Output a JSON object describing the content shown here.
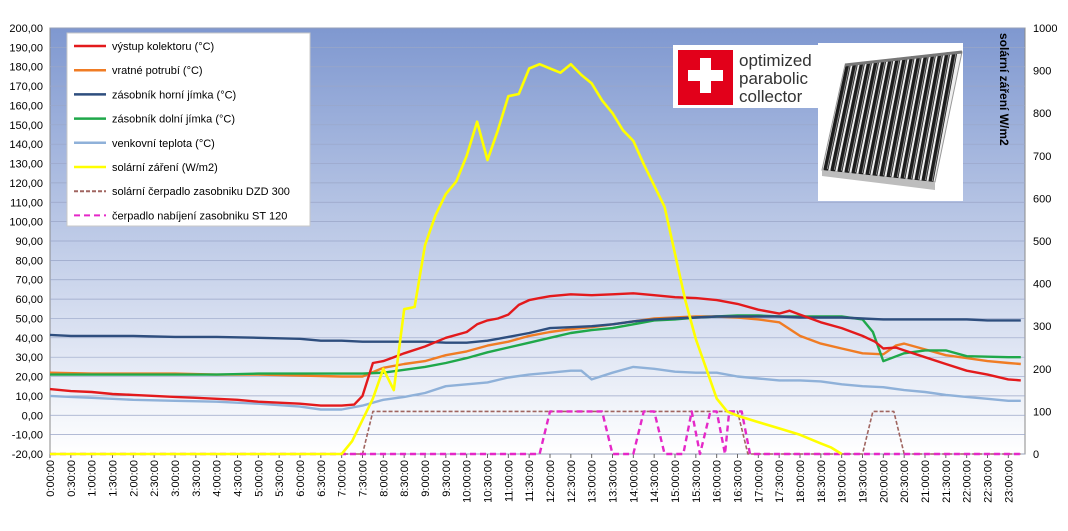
{
  "chart_data": {
    "type": "line",
    "y_left": {
      "min": -20,
      "max": 200,
      "step": 10
    },
    "y_right": {
      "min": 0,
      "max": 1000,
      "step": 100,
      "label": "solární záření W/m2"
    },
    "x_tick_labels": [
      "0:00:00",
      "0:30:00",
      "1:00:00",
      "1:30:00",
      "2:00:00",
      "2:30:00",
      "3:00:00",
      "3:30:00",
      "4:00:00",
      "4:30:00",
      "5:00:00",
      "5:30:00",
      "6:00:00",
      "6:30:00",
      "7:00:00",
      "7:30:00",
      "8:00:00",
      "8:30:00",
      "9:00:00",
      "9:30:00",
      "10:00:00",
      "10:30:00",
      "11:00:00",
      "11:30:00",
      "12:00:00",
      "12:30:00",
      "13:00:00",
      "13:30:00",
      "14:00:00",
      "14:30:00",
      "15:00:00",
      "15:30:00",
      "16:00:00",
      "16:30:00",
      "17:00:00",
      "17:30:00",
      "18:00:00",
      "18:30:00",
      "19:00:00",
      "19:30:00",
      "20:00:00",
      "20:30:00",
      "21:00:00",
      "21:30:00",
      "22:00:00",
      "22:30:00",
      "23:00:00"
    ],
    "x_range_hours": [
      0,
      23.4
    ],
    "grid": true,
    "legend_position": "top-left",
    "series": [
      {
        "name": "výstup kolektoru (°C)",
        "color": "#e31a1c",
        "axis": "left",
        "style": "solid",
        "points": [
          [
            0,
            13.5
          ],
          [
            0.5,
            12.5
          ],
          [
            1,
            12
          ],
          [
            1.5,
            11
          ],
          [
            2,
            10.5
          ],
          [
            2.5,
            10
          ],
          [
            3,
            9.5
          ],
          [
            3.5,
            9
          ],
          [
            4,
            8.5
          ],
          [
            4.5,
            8
          ],
          [
            5,
            7
          ],
          [
            5.5,
            6.5
          ],
          [
            6,
            6
          ],
          [
            6.5,
            5
          ],
          [
            7,
            5
          ],
          [
            7.3,
            5.5
          ],
          [
            7.5,
            10
          ],
          [
            7.75,
            27
          ],
          [
            8,
            28
          ],
          [
            8.25,
            30
          ],
          [
            8.5,
            32
          ],
          [
            9,
            35.5
          ],
          [
            9.5,
            40
          ],
          [
            10,
            43
          ],
          [
            10.25,
            47
          ],
          [
            10.5,
            49
          ],
          [
            10.75,
            50
          ],
          [
            11,
            52
          ],
          [
            11.25,
            57
          ],
          [
            11.5,
            59.5
          ],
          [
            11.75,
            60.5
          ],
          [
            12,
            61.5
          ],
          [
            12.5,
            62.5
          ],
          [
            13,
            62
          ],
          [
            13.5,
            62.5
          ],
          [
            14,
            63
          ],
          [
            14.5,
            62
          ],
          [
            15,
            61
          ],
          [
            15.5,
            60.5
          ],
          [
            16,
            59.5
          ],
          [
            16.5,
            57.5
          ],
          [
            17,
            54.5
          ],
          [
            17.5,
            52.5
          ],
          [
            17.75,
            54
          ],
          [
            18,
            52
          ],
          [
            18.5,
            48
          ],
          [
            19,
            45
          ],
          [
            19.5,
            41
          ],
          [
            19.8,
            38
          ],
          [
            20,
            34.5
          ],
          [
            20.3,
            35
          ],
          [
            20.5,
            33.5
          ],
          [
            21,
            30
          ],
          [
            21.5,
            26.5
          ],
          [
            22,
            23
          ],
          [
            22.5,
            21
          ],
          [
            23,
            18.5
          ],
          [
            23.3,
            18
          ]
        ]
      },
      {
        "name": "vratné potrubí (°C)",
        "color": "#f07c24",
        "axis": "left",
        "style": "solid",
        "points": [
          [
            0,
            22
          ],
          [
            1,
            21.5
          ],
          [
            2,
            21.5
          ],
          [
            3,
            21.5
          ],
          [
            4,
            21
          ],
          [
            5,
            21
          ],
          [
            6,
            20.5
          ],
          [
            7,
            20
          ],
          [
            7.5,
            20
          ],
          [
            8,
            24.5
          ],
          [
            8.5,
            26.5
          ],
          [
            9,
            28
          ],
          [
            9.5,
            31
          ],
          [
            10,
            33
          ],
          [
            10.5,
            36
          ],
          [
            11,
            38
          ],
          [
            11.5,
            41
          ],
          [
            12,
            43
          ],
          [
            12.5,
            44.5
          ],
          [
            13,
            45.5
          ],
          [
            13.5,
            47
          ],
          [
            14,
            48.5
          ],
          [
            14.5,
            50
          ],
          [
            15,
            50.5
          ],
          [
            15.5,
            51
          ],
          [
            16,
            51
          ],
          [
            16.5,
            50.5
          ],
          [
            17,
            49.5
          ],
          [
            17.5,
            48
          ],
          [
            18,
            41
          ],
          [
            18.5,
            37
          ],
          [
            19,
            34.5
          ],
          [
            19.5,
            32
          ],
          [
            20,
            31.5
          ],
          [
            20.3,
            36
          ],
          [
            20.5,
            37
          ],
          [
            21,
            34
          ],
          [
            21.5,
            31
          ],
          [
            22,
            29.5
          ],
          [
            22.5,
            28
          ],
          [
            23,
            27
          ],
          [
            23.3,
            26.5
          ]
        ]
      },
      {
        "name": "zásobník horní jímka (°C)",
        "color": "#2e4e7e",
        "axis": "left",
        "style": "solid",
        "points": [
          [
            0,
            41.5
          ],
          [
            0.5,
            41
          ],
          [
            1,
            41
          ],
          [
            2,
            41
          ],
          [
            3,
            40.5
          ],
          [
            4,
            40.5
          ],
          [
            5,
            40
          ],
          [
            6,
            39.5
          ],
          [
            6.5,
            38.5
          ],
          [
            7,
            38.5
          ],
          [
            7.5,
            38
          ],
          [
            8,
            38
          ],
          [
            9,
            38
          ],
          [
            9.5,
            37.5
          ],
          [
            10,
            37.5
          ],
          [
            10.5,
            38.5
          ],
          [
            11,
            40.5
          ],
          [
            11.5,
            42.5
          ],
          [
            12,
            45
          ],
          [
            12.5,
            45.5
          ],
          [
            13,
            46
          ],
          [
            13.5,
            47
          ],
          [
            14,
            48.5
          ],
          [
            14.5,
            49.5
          ],
          [
            15,
            50
          ],
          [
            15.5,
            50.5
          ],
          [
            16,
            51
          ],
          [
            17,
            51
          ],
          [
            17.5,
            51
          ],
          [
            18,
            50.5
          ],
          [
            19,
            50.5
          ],
          [
            19.5,
            50
          ],
          [
            20,
            49.5
          ],
          [
            21,
            49.5
          ],
          [
            22,
            49.5
          ],
          [
            22.5,
            49
          ],
          [
            23.3,
            49
          ]
        ]
      },
      {
        "name": "zásobník dolní jímka  (°C)",
        "color": "#1fa84a",
        "axis": "left",
        "style": "solid",
        "points": [
          [
            0,
            21
          ],
          [
            1,
            21
          ],
          [
            2,
            21
          ],
          [
            3,
            21
          ],
          [
            4,
            21
          ],
          [
            5,
            21.5
          ],
          [
            6,
            21.5
          ],
          [
            7,
            21.5
          ],
          [
            7.5,
            21.5
          ],
          [
            8,
            22
          ],
          [
            8.5,
            23.5
          ],
          [
            9,
            25
          ],
          [
            9.5,
            27
          ],
          [
            10,
            29.5
          ],
          [
            10.5,
            32.5
          ],
          [
            11,
            35
          ],
          [
            11.5,
            37.5
          ],
          [
            12,
            40
          ],
          [
            12.5,
            42.5
          ],
          [
            13,
            44
          ],
          [
            13.5,
            45
          ],
          [
            14,
            47
          ],
          [
            14.5,
            49
          ],
          [
            15,
            49.5
          ],
          [
            15.5,
            50.5
          ],
          [
            16,
            51
          ],
          [
            16.5,
            51.5
          ],
          [
            17,
            51.5
          ],
          [
            17.5,
            51
          ],
          [
            18,
            51
          ],
          [
            19,
            51
          ],
          [
            19.5,
            49.5
          ],
          [
            19.75,
            43
          ],
          [
            20,
            28
          ],
          [
            20.5,
            32
          ],
          [
            21,
            33.5
          ],
          [
            21.5,
            33.5
          ],
          [
            22,
            30.5
          ],
          [
            23,
            30
          ],
          [
            23.3,
            30
          ]
        ]
      },
      {
        "name": "venkovní teplota (°C)",
        "color": "#8fb1d9",
        "axis": "left",
        "style": "solid",
        "points": [
          [
            0,
            10
          ],
          [
            0.5,
            9.5
          ],
          [
            1,
            9
          ],
          [
            1.5,
            8.5
          ],
          [
            2,
            8
          ],
          [
            3,
            7.5
          ],
          [
            4,
            7
          ],
          [
            5,
            6
          ],
          [
            6,
            4.5
          ],
          [
            6.5,
            3
          ],
          [
            7,
            3
          ],
          [
            7.5,
            5
          ],
          [
            8,
            8
          ],
          [
            8.5,
            9.5
          ],
          [
            9,
            11.5
          ],
          [
            9.5,
            15
          ],
          [
            10,
            16
          ],
          [
            10.5,
            17
          ],
          [
            11,
            19.5
          ],
          [
            11.5,
            21
          ],
          [
            12,
            22
          ],
          [
            12.5,
            23
          ],
          [
            12.75,
            23
          ],
          [
            13,
            18.5
          ],
          [
            13.5,
            22
          ],
          [
            14,
            25
          ],
          [
            14.5,
            24
          ],
          [
            15,
            22.5
          ],
          [
            15.5,
            22
          ],
          [
            16,
            22
          ],
          [
            16.5,
            20
          ],
          [
            17,
            19
          ],
          [
            17.5,
            18
          ],
          [
            18,
            18
          ],
          [
            18.5,
            17.5
          ],
          [
            19,
            16
          ],
          [
            19.5,
            15
          ],
          [
            20,
            14.5
          ],
          [
            20.5,
            13
          ],
          [
            21,
            12
          ],
          [
            21.5,
            10.5
          ],
          [
            22,
            9.5
          ],
          [
            22.5,
            8.5
          ],
          [
            23,
            7.5
          ],
          [
            23.3,
            7.5
          ]
        ]
      },
      {
        "name": "solární záření (W/m2)",
        "color": "#ffff00",
        "axis": "right",
        "style": "solid",
        "points": [
          [
            0,
            0
          ],
          [
            7,
            0
          ],
          [
            7.25,
            30
          ],
          [
            7.5,
            80
          ],
          [
            7.75,
            130
          ],
          [
            8,
            200
          ],
          [
            8.25,
            150
          ],
          [
            8.5,
            340
          ],
          [
            8.75,
            345
          ],
          [
            9,
            490
          ],
          [
            9.25,
            560
          ],
          [
            9.5,
            610
          ],
          [
            9.75,
            640
          ],
          [
            10,
            700
          ],
          [
            10.25,
            780
          ],
          [
            10.5,
            690
          ],
          [
            10.75,
            760
          ],
          [
            11,
            840
          ],
          [
            11.25,
            845
          ],
          [
            11.5,
            905
          ],
          [
            11.75,
            915
          ],
          [
            12,
            905
          ],
          [
            12.25,
            895
          ],
          [
            12.5,
            915
          ],
          [
            12.75,
            890
          ],
          [
            13,
            870
          ],
          [
            13.25,
            830
          ],
          [
            13.5,
            800
          ],
          [
            13.75,
            760
          ],
          [
            14,
            735
          ],
          [
            14.25,
            680
          ],
          [
            14.5,
            630
          ],
          [
            14.75,
            580
          ],
          [
            15,
            470
          ],
          [
            15.25,
            360
          ],
          [
            15.5,
            270
          ],
          [
            15.75,
            200
          ],
          [
            16,
            130
          ],
          [
            16.25,
            100
          ],
          [
            16.5,
            90
          ],
          [
            17,
            75
          ],
          [
            17.5,
            60
          ],
          [
            18,
            45
          ],
          [
            18.5,
            25
          ],
          [
            18.75,
            15
          ],
          [
            19,
            0
          ]
        ]
      },
      {
        "name": "solární čerpadlo zasobniku  DZD 300",
        "color": "#a06560",
        "axis": "right",
        "style": "dashed",
        "points": [
          [
            0,
            0
          ],
          [
            7.5,
            0
          ],
          [
            7.75,
            100
          ],
          [
            16.5,
            100
          ],
          [
            16.75,
            0
          ],
          [
            19.5,
            0
          ],
          [
            19.75,
            100
          ],
          [
            20.25,
            100
          ],
          [
            20.5,
            0
          ],
          [
            23.3,
            0
          ]
        ]
      },
      {
        "name": "čerpadlo nabíjení  zasobniku ST 120",
        "color": "#e528c8",
        "axis": "right",
        "style": "dashed",
        "points": [
          [
            0,
            0
          ],
          [
            11.75,
            0
          ],
          [
            12,
            100
          ],
          [
            13.25,
            100
          ],
          [
            13.5,
            0
          ],
          [
            14,
            0
          ],
          [
            14.25,
            100
          ],
          [
            14.5,
            100
          ],
          [
            14.75,
            0
          ],
          [
            15.2,
            0
          ],
          [
            15.4,
            100
          ],
          [
            15.6,
            0
          ],
          [
            15.85,
            100
          ],
          [
            16,
            100
          ],
          [
            16.2,
            0
          ],
          [
            16.3,
            100
          ],
          [
            16.6,
            100
          ],
          [
            16.8,
            0
          ],
          [
            23.3,
            0
          ]
        ]
      }
    ]
  },
  "logo": {
    "lines": [
      "optimized",
      "parabolic",
      "collector"
    ],
    "brand_color": "#e2001a"
  }
}
